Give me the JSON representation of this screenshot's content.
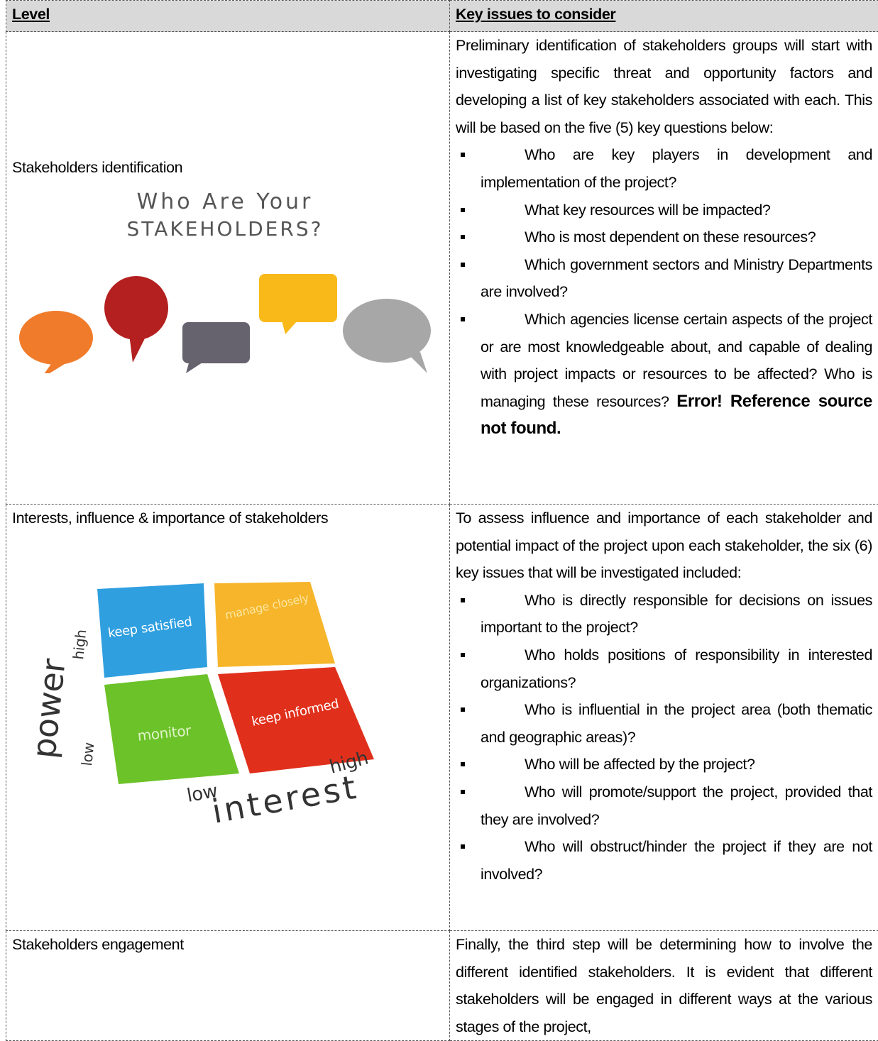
{
  "table": {
    "header": [
      "Level",
      "Key issues to consider"
    ],
    "rows": [
      {
        "level": "Stakeholders identification",
        "image_text": [
          "Who Are Your",
          "STAKEHOLDERS?"
        ],
        "intro": "Preliminary identification of stakeholders groups will start with investigating specific threat and opportunity factors and developing a list of key stakeholders associated with each. This will be based on the five (5) key questions below:",
        "bullets": [
          "Who are key players in development and implementation of the project?",
          "What key resources will be impacted?",
          "Who is most dependent on these resources?",
          "Which government sectors and Ministry Departments are involved?",
          "Which agencies license certain aspects of the project or are most knowledgeable about, and capable of dealing with project impacts or resources to be affected? Who is managing these resources?"
        ],
        "error": "Error! Reference source not found."
      },
      {
        "level": "Interests, influence & importance of stakeholders",
        "image_text": [
          "keep satisfied",
          "manage closely",
          "keep informed",
          "monitor",
          "power",
          "high",
          "low",
          "interest",
          "low",
          "high"
        ],
        "intro": "To assess influence and importance of each stakeholder and potential impact of the project upon each stakeholder, the six (6) key issues that will be investigated included:",
        "bullets": [
          "Who is directly responsible for decisions on issues important to the project?",
          "Who holds positions of responsibility in interested organizations?",
          "Who is influential in the project area (both thematic and geographic areas)?",
          "Who will be affected by the project?",
          "Who will promote/support the project, provided that they are involved?",
          "Who will obstruct/hinder the project if they are not involved?"
        ]
      },
      {
        "level": "Stakeholders engagement",
        "intro": "Finally, the third step will be determining how to involve the different identified stakeholders. It is evident that different stakeholders will be engaged in different ways at the various stages of the project,"
      }
    ]
  }
}
